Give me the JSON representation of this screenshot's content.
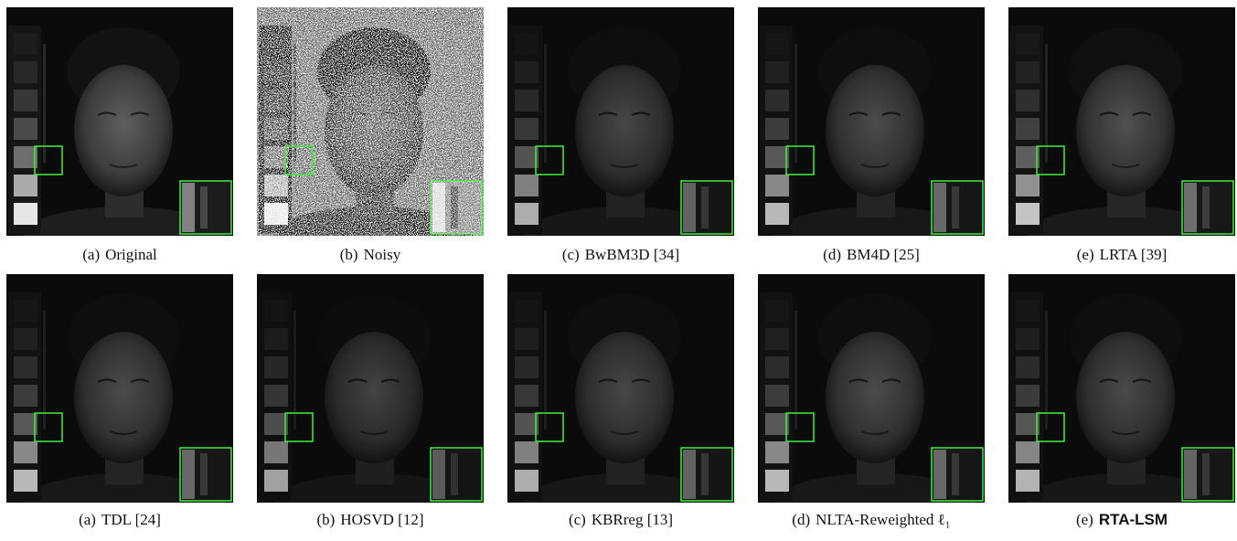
{
  "panels": [
    {
      "label": "(a)",
      "name": "Original"
    },
    {
      "label": "(b)",
      "name": "Noisy"
    },
    {
      "label": "(c)",
      "name": "BwBM3D [34]"
    },
    {
      "label": "(d)",
      "name": "BM4D [25]"
    },
    {
      "label": "(e)",
      "name": "LRTA [39]"
    },
    {
      "label": "(a)",
      "name": "TDL [24]"
    },
    {
      "label": "(b)",
      "name": "HOSVD [12]"
    },
    {
      "label": "(c)",
      "name": "KBRreg [13]"
    },
    {
      "label": "(d)",
      "name": "NLTA-Reweighted ℓ₁"
    },
    {
      "label": "(e)",
      "name": "RTA-LSM"
    }
  ]
}
